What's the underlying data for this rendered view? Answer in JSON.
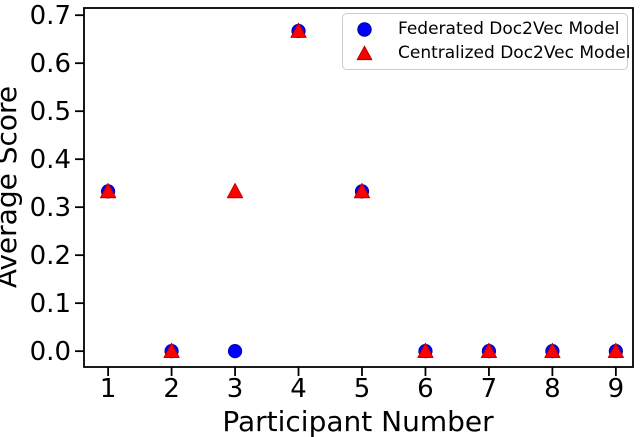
{
  "chart_data": {
    "type": "scatter",
    "title": "",
    "xlabel": "Participant Number",
    "ylabel": "Average Score",
    "x": [
      1,
      2,
      3,
      4,
      5,
      6,
      7,
      8,
      9
    ],
    "series": [
      {
        "name": "Federated Doc2Vec Model",
        "marker": "circle",
        "color": "#0000ff",
        "edge_color": "#0000b0",
        "values": [
          0.333,
          0.0,
          0.0,
          0.667,
          0.333,
          0.0,
          0.0,
          0.0,
          0.0
        ]
      },
      {
        "name": "Centralized Doc2Vec Model",
        "marker": "triangle-up",
        "color": "#ff0000",
        "edge_color": "#c00000",
        "values": [
          0.333,
          0.0,
          0.333,
          0.667,
          0.333,
          0.0,
          0.0,
          0.0,
          0.0
        ]
      }
    ],
    "xlim": [
      0.62,
      9.27
    ],
    "ylim": [
      -0.033,
      0.715
    ],
    "xticks": {
      "values": [
        1,
        2,
        3,
        4,
        5,
        6,
        7,
        8,
        9
      ],
      "labels": [
        "1",
        "2",
        "3",
        "4",
        "5",
        "6",
        "7",
        "8",
        "9"
      ]
    },
    "yticks": {
      "values": [
        0.0,
        0.1,
        0.2,
        0.3,
        0.4,
        0.5,
        0.6,
        0.7
      ],
      "labels": [
        "0.0",
        "0.1",
        "0.2",
        "0.3",
        "0.4",
        "0.5",
        "0.6",
        "0.7"
      ]
    },
    "grid": false,
    "axis_color": "#000000",
    "legend": {
      "position": "upper right",
      "items": [
        {
          "label": "Federated Doc2Vec Model",
          "marker": "circle",
          "color": "#0000ff",
          "edge_color": "#0000b0"
        },
        {
          "label": "Centralized Doc2Vec Model",
          "marker": "triangle-up",
          "color": "#ff0000",
          "edge_color": "#c00000"
        }
      ]
    }
  }
}
